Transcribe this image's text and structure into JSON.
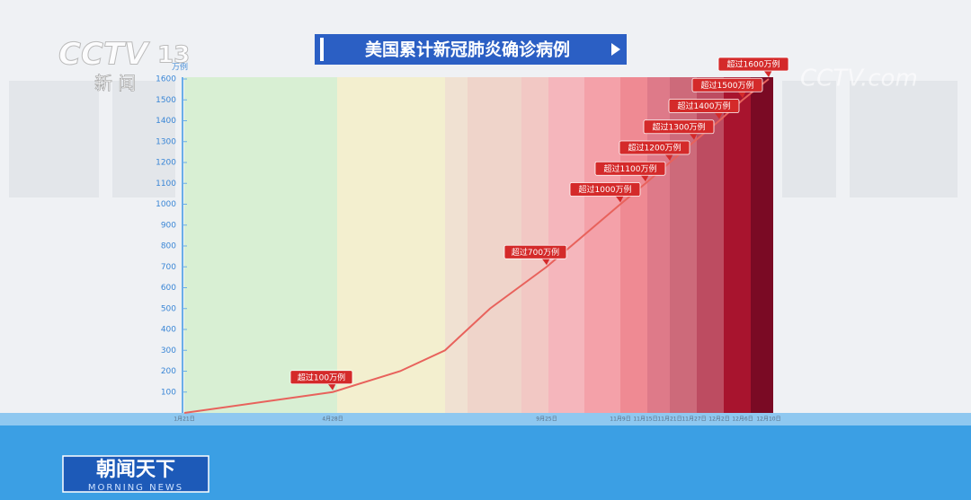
{
  "overlay": {
    "channel": "CCTV",
    "channel_number": "13",
    "channel_name": "新 闻",
    "corner_logo": "CCTV.com",
    "program": "朝闻天下",
    "program_en": "MORNING NEWS"
  },
  "chart_data": {
    "type": "line",
    "title": "美国累计新冠肺炎确诊病例",
    "y_unit": "万例",
    "categories": [
      "1月21日",
      "4月28日",
      null,
      null,
      null,
      "9月25日",
      "11月9日",
      "11月15日",
      "11月21日",
      "11月27日",
      "12月2日",
      "12月6日",
      "12月10日"
    ],
    "values": [
      0,
      100,
      200,
      300,
      500,
      700,
      1000,
      1100,
      1200,
      1300,
      1400,
      1500,
      1600
    ],
    "value_labels": [
      null,
      "超过100万例",
      null,
      null,
      null,
      "超过700万例",
      "超过1000万例",
      "超过1100万例",
      "超过1200万例",
      "超过1300万例",
      "超过1400万例",
      "超过1500万例",
      "超过1600万例"
    ],
    "color": "#e8625c",
    "label_color": "#d42a2a",
    "ylim": [
      0,
      1600
    ],
    "yticks": [
      100,
      200,
      300,
      400,
      500,
      600,
      700,
      800,
      900,
      1000,
      1100,
      1200,
      1300,
      1400,
      1500,
      1600
    ]
  }
}
